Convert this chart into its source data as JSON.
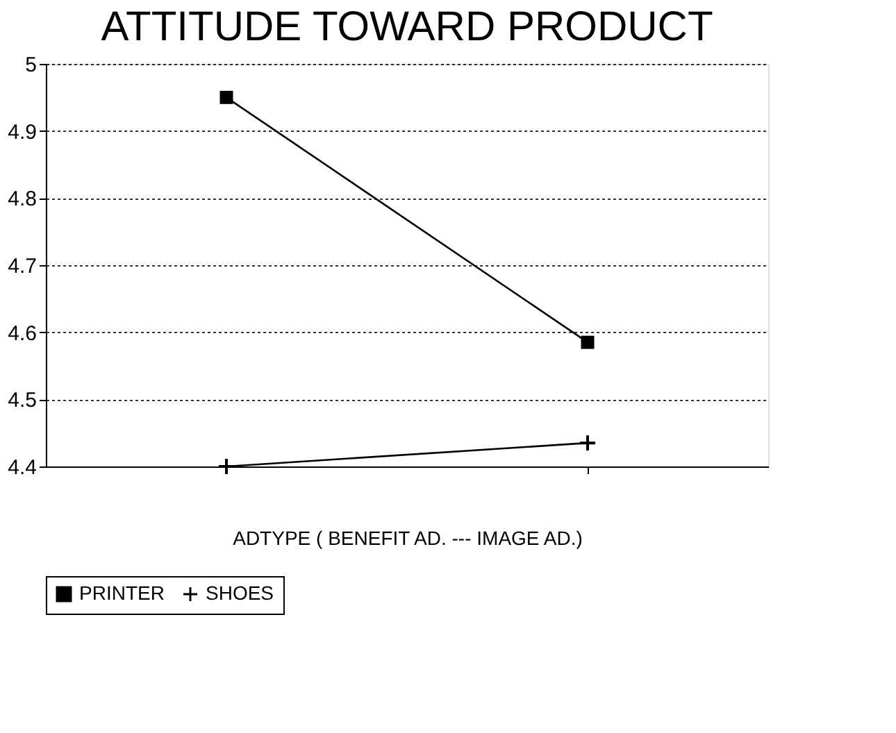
{
  "chart_data": {
    "type": "line",
    "title": "ATTITUDE TOWARD PRODUCT",
    "xlabel": "ADTYPE ( BENEFIT AD. --- IMAGE AD.)",
    "categories": [
      null,
      null
    ],
    "series": [
      {
        "name": "PRINTER",
        "color": "#000000",
        "marker": "square",
        "values": [
          4.95,
          4.585
        ]
      },
      {
        "name": "SHOES",
        "color": "#000000",
        "marker": "cross",
        "values": [
          4.4,
          4.435
        ]
      }
    ],
    "ylim": [
      4.4,
      5
    ],
    "yticks": [
      4.4,
      4.5,
      4.6,
      4.7,
      4.8,
      4.9,
      {
        "value": 5,
        "label": "5"
      }
    ],
    "grid": "y",
    "legend": "bottom"
  }
}
